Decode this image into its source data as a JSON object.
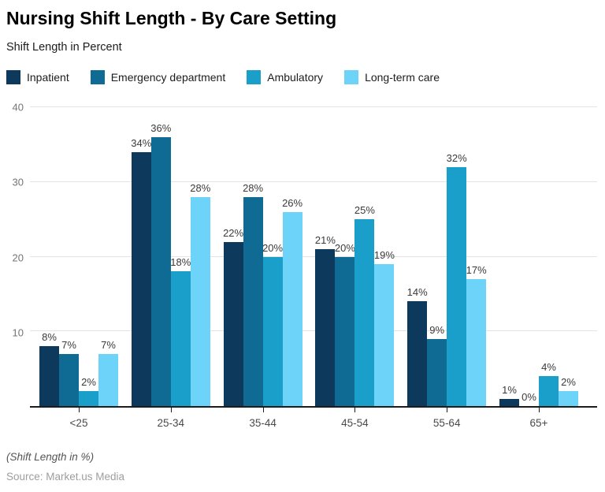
{
  "header": {
    "title": "Nursing Shift Length - By Care Setting",
    "subtitle": "Shift Length in Percent"
  },
  "chart_data": {
    "type": "bar",
    "title": "Nursing Shift Length - By Care Setting",
    "subtitle": "Shift Length in Percent",
    "categories": [
      "<25",
      "25-34",
      "35-44",
      "45-54",
      "55-64",
      "65+"
    ],
    "series": [
      {
        "name": "Inpatient",
        "color": "#0d3a5c",
        "values": [
          8,
          34,
          22,
          21,
          14,
          1
        ]
      },
      {
        "name": "Emergency department",
        "color": "#0f6a94",
        "values": [
          7,
          36,
          28,
          20,
          9,
          0
        ]
      },
      {
        "name": "Ambulatory",
        "color": "#199fc9",
        "values": [
          2,
          18,
          20,
          25,
          32,
          4
        ]
      },
      {
        "name": "Long-term care",
        "color": "#6dd3f8",
        "values": [
          7,
          28,
          26,
          19,
          17,
          2
        ]
      }
    ],
    "xlabel": "",
    "ylabel": "",
    "ylim": [
      0,
      40
    ],
    "yticks": [
      10,
      20,
      30,
      40
    ],
    "grid": true,
    "legend_position": "top",
    "value_label_format": "{v}%"
  },
  "footer": {
    "note": "(Shift Length in %)",
    "source": "Source: Market.us Media"
  },
  "colors": {
    "axis_line": "#1c1c1c",
    "gridline": "#e3e3e3",
    "y_tick_text": "#757575",
    "value_label_text": "#3a3a3a"
  }
}
